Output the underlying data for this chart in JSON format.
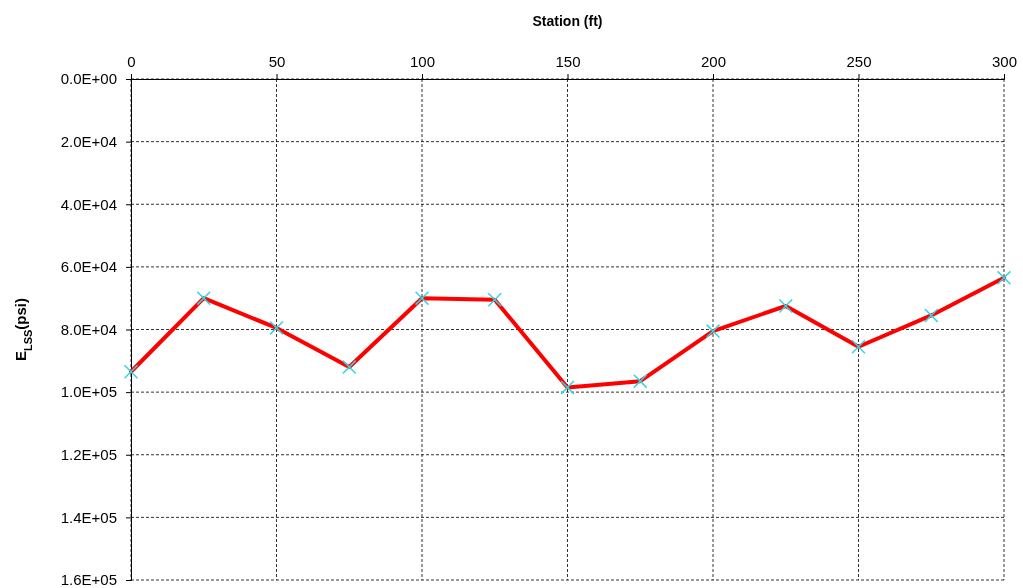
{
  "chart_data": {
    "type": "line",
    "xlabel": "Station (ft)",
    "ylabel": "E$_{LSS}$(psi)",
    "x": [
      0,
      25,
      50,
      75,
      100,
      125,
      150,
      175,
      200,
      225,
      250,
      275,
      300
    ],
    "series": [
      {
        "color": "#ff0000",
        "colors": [
          "#33d6e0",
          "#33d6e0",
          "#33d6e0",
          "#33d6e0",
          "#33d6e0",
          "#33d6e0",
          "#33d6e0",
          "#33d6e0",
          "#33d6e0",
          "#33d6e0",
          "#33d6e0",
          "#33d6e0",
          "#33d6e0"
        ],
        "values": [
          93500,
          70000,
          79500,
          92000,
          70000,
          70500,
          98500,
          96500,
          80500,
          72500,
          85500,
          75500,
          63500
        ]
      }
    ],
    "xlim": [
      0,
      300
    ],
    "xticks": [
      0,
      50,
      100,
      150,
      200,
      250,
      300
    ],
    "ylim": [
      160000,
      0
    ],
    "yticks": [
      {
        "value": 0,
        "label": "0.0E+00"
      },
      {
        "value": 20000,
        "label": "2.0E+04"
      },
      {
        "value": 40000,
        "label": "4.0E+04"
      },
      {
        "value": 60000,
        "label": "6.0E+04"
      },
      {
        "value": 80000,
        "label": "8.0E+04"
      },
      {
        "value": 100000,
        "label": "1.0E+05"
      },
      {
        "value": 120000,
        "label": "1.2E+05"
      },
      {
        "value": 140000,
        "label": "1.4E+05"
      },
      {
        "value": 160000,
        "label": "1.6E+05"
      }
    ],
    "grid": true,
    "marker": "cross",
    "line_style": "solid"
  }
}
